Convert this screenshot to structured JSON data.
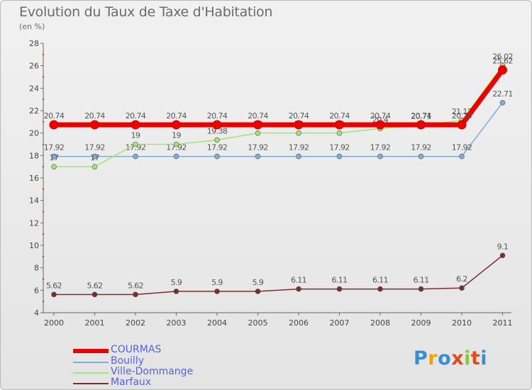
{
  "header": {
    "title": "Evolution du Taux de Taxe d'Habitation",
    "subtitle": "(en %)"
  },
  "logo": {
    "text": "Proxiti"
  },
  "chart_data": {
    "type": "line",
    "categories": [
      "2000",
      "2001",
      "2002",
      "2003",
      "2004",
      "2005",
      "2006",
      "2007",
      "2008",
      "2009",
      "2010",
      "2011"
    ],
    "ylim": [
      4,
      28
    ],
    "yticks": [
      "4",
      "6",
      "8",
      "10",
      "12",
      "14",
      "16",
      "18",
      "20",
      "22",
      "24",
      "26",
      "28"
    ],
    "grid": false,
    "legend_position": "bottom-left",
    "series": [
      {
        "name": "Bouilly",
        "color": "#7eaed6",
        "values": [
          17.92,
          17.92,
          17.92,
          17.92,
          17.92,
          17.92,
          17.92,
          17.92,
          17.92,
          17.92,
          17.92,
          22.71
        ],
        "labels": [
          "17.92",
          "17.92",
          "17.92",
          "17.92",
          "17.92",
          "17.92",
          "17.92",
          "17.92",
          "17.92",
          "17.92",
          "17.92",
          "22.71"
        ]
      },
      {
        "name": "Ville-Dommange",
        "color": "#a4e275",
        "values": [
          17,
          17,
          19,
          19,
          19.38,
          20,
          20,
          20,
          20.4,
          20.71,
          21.12,
          26.02
        ],
        "labels": [
          "17",
          "17",
          "19",
          "19",
          "19.38",
          "20",
          "20",
          "20",
          "20.4",
          "20.71",
          "21.12",
          "26.02"
        ]
      },
      {
        "name": "Marfaux",
        "color": "#7a2e2e",
        "values": [
          5.62,
          5.62,
          5.62,
          5.9,
          5.9,
          5.9,
          6.11,
          6.11,
          6.11,
          6.11,
          6.2,
          9.1
        ],
        "labels": [
          "5.62",
          "5.62",
          "5.62",
          "5.9",
          "5.9",
          "5.9",
          "6.11",
          "6.11",
          "6.11",
          "6.11",
          "6.2",
          "9.1"
        ]
      },
      {
        "name": "COURMAS",
        "color": "#ee0000",
        "values": [
          20.74,
          20.74,
          20.74,
          20.74,
          20.74,
          20.74,
          20.74,
          20.74,
          20.74,
          20.74,
          20.74,
          25.62
        ],
        "labels": [
          "20.74",
          "20.74",
          "20.74",
          "20.74",
          "20.74",
          "20.74",
          "20.74",
          "20.74",
          "20.74",
          "20.74",
          "20.74",
          "25.62"
        ]
      }
    ],
    "legend": [
      "COURMAS",
      "Bouilly",
      "Ville-Dommange",
      "Marfaux"
    ]
  }
}
